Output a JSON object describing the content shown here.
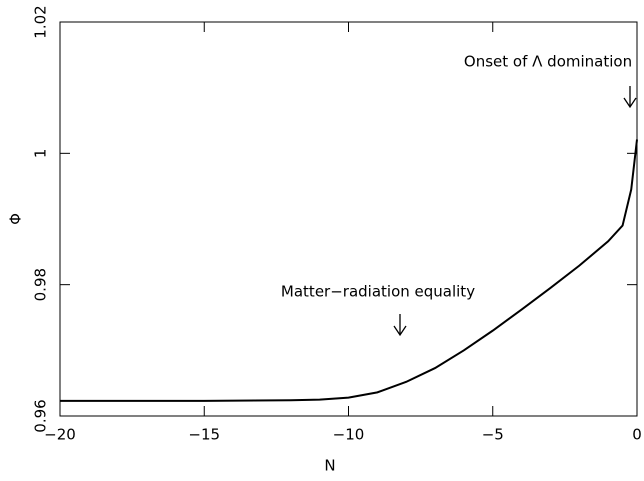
{
  "chart_data": {
    "type": "line",
    "x_label": "N",
    "y_label": "Φ",
    "annotations": [
      "Matter−radiation equality",
      "Onset of Λ domination"
    ],
    "x": [
      -20,
      -15,
      -12,
      -11,
      -10,
      -9,
      -8,
      -7,
      -6,
      -5,
      -4,
      -3,
      -2,
      -1,
      -0.5,
      -0.2,
      0
    ],
    "series": [
      {
        "color": "#000000",
        "values": [
          0.9623,
          0.9623,
          0.9624,
          0.9625,
          0.9628,
          0.9636,
          0.9652,
          0.9673,
          0.97,
          0.973,
          0.9762,
          0.9795,
          0.9829,
          0.9866,
          0.989,
          0.9945,
          1.0021
        ]
      }
    ],
    "xlim": [
      -20,
      0
    ],
    "ylim": [
      0.96,
      1.02
    ],
    "xticks": [
      {
        "value": -20,
        "label": "−20"
      },
      {
        "value": -15,
        "label": "−15"
      },
      {
        "value": -10,
        "label": "−10"
      },
      {
        "value": -5,
        "label": "−5"
      },
      0
    ],
    "yticks": [
      0.96,
      0.98,
      1,
      1.02
    ]
  }
}
